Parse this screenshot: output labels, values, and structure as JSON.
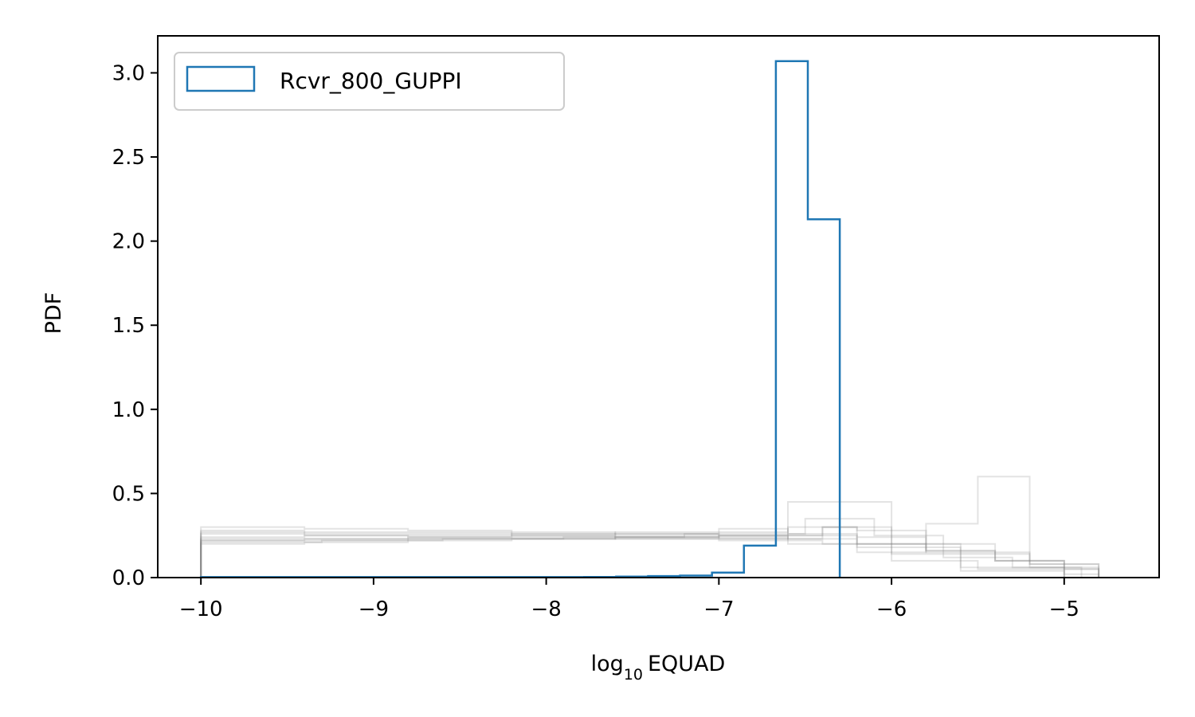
{
  "chart_data": {
    "type": "histogram-step",
    "title": "",
    "xlabel": {
      "main": "log",
      "sub": "10",
      "suffix": "EQUAD"
    },
    "ylabel": "PDF",
    "xlim": [
      -10.25,
      -4.45
    ],
    "ylim": [
      0,
      3.22
    ],
    "xticks": [
      -10,
      -9,
      -8,
      -7,
      -6,
      -5
    ],
    "xtick_labels": [
      "−10",
      "−9",
      "−8",
      "−7",
      "−6",
      "−5"
    ],
    "yticks": [
      0.0,
      0.5,
      1.0,
      1.5,
      2.0,
      2.5,
      3.0
    ],
    "ytick_labels": [
      "0.0",
      "0.5",
      "1.0",
      "1.5",
      "2.0",
      "2.5",
      "3.0"
    ],
    "legend": {
      "position": "top-left",
      "entries": [
        "Rcvr_800_GUPPI"
      ]
    },
    "colors": {
      "highlight": "#1f77b4",
      "background": "#808080"
    },
    "series": [
      {
        "name": "Rcvr_800_GUPPI",
        "highlight": true,
        "edges": [
          -10.0,
          -9.815,
          -9.63,
          -9.445,
          -9.26,
          -9.075,
          -8.89,
          -8.705,
          -8.52,
          -8.335,
          -8.15,
          -7.965,
          -7.78,
          -7.595,
          -7.41,
          -7.225,
          -7.04,
          -6.855,
          -6.67,
          -6.485,
          -6.3
        ],
        "values": [
          0.003,
          0.003,
          0.003,
          0.003,
          0.003,
          0.003,
          0.003,
          0.003,
          0.003,
          0.003,
          0.003,
          0.003,
          0.004,
          0.006,
          0.009,
          0.012,
          0.03,
          0.19,
          3.07,
          2.13
        ]
      },
      {
        "highlight": false,
        "edges": [
          -10.0,
          -9.4,
          -8.8,
          -8.2,
          -7.6,
          -7.0,
          -6.4,
          -5.8,
          -5.2,
          -4.8
        ],
        "values": [
          0.26,
          0.25,
          0.24,
          0.24,
          0.23,
          0.22,
          0.2,
          0.15,
          0.08
        ]
      },
      {
        "highlight": false,
        "edges": [
          -10.0,
          -9.4,
          -8.8,
          -8.2,
          -7.6,
          -7.0,
          -6.6,
          -6.2,
          -5.8,
          -5.4,
          -5.0
        ],
        "values": [
          0.22,
          0.23,
          0.24,
          0.25,
          0.26,
          0.27,
          0.3,
          0.28,
          0.2,
          0.1
        ]
      },
      {
        "highlight": false,
        "edges": [
          -10.0,
          -9.4,
          -8.8,
          -8.2,
          -7.6,
          -7.0,
          -6.6,
          -6.2,
          -5.8,
          -5.4,
          -5.0,
          -4.8
        ],
        "values": [
          0.28,
          0.27,
          0.27,
          0.26,
          0.25,
          0.24,
          0.23,
          0.2,
          0.16,
          0.1,
          0.05
        ]
      },
      {
        "highlight": false,
        "edges": [
          -10.0,
          -9.3,
          -8.6,
          -7.9,
          -7.2,
          -6.5,
          -6.1,
          -5.7,
          -5.3,
          -4.9
        ],
        "values": [
          0.21,
          0.22,
          0.23,
          0.24,
          0.26,
          0.35,
          0.25,
          0.12,
          0.06
        ]
      },
      {
        "highlight": false,
        "edges": [
          -10.0,
          -9.4,
          -8.8,
          -8.2,
          -7.6,
          -7.0,
          -6.4,
          -6.2,
          -5.8,
          -5.4,
          -5.0,
          -4.8
        ],
        "values": [
          0.23,
          0.23,
          0.23,
          0.23,
          0.23,
          0.23,
          0.3,
          0.24,
          0.16,
          0.1,
          0.05
        ]
      },
      {
        "highlight": false,
        "edges": [
          -10.0,
          -9.4,
          -8.8,
          -8.2,
          -7.6,
          -7.0,
          -6.6,
          -6.0,
          -5.5,
          -5.0
        ],
        "values": [
          0.3,
          0.29,
          0.28,
          0.27,
          0.26,
          0.25,
          0.2,
          0.1,
          0.05
        ]
      },
      {
        "highlight": false,
        "edges": [
          -10.0,
          -9.4,
          -8.8,
          -8.2,
          -7.6,
          -7.0,
          -6.2,
          -5.8,
          -5.5,
          -5.2,
          -4.8
        ],
        "values": [
          0.2,
          0.21,
          0.22,
          0.23,
          0.24,
          0.25,
          0.15,
          0.32,
          0.6,
          0.08
        ]
      },
      {
        "highlight": false,
        "edges": [
          -10.0,
          -9.4,
          -8.8,
          -8.2,
          -7.6,
          -7.0,
          -6.6,
          -6.2,
          -5.6,
          -5.0,
          -4.8
        ],
        "values": [
          0.24,
          0.25,
          0.25,
          0.26,
          0.27,
          0.29,
          0.26,
          0.18,
          0.06,
          0.02
        ]
      },
      {
        "highlight": false,
        "edges": [
          -10.0,
          -9.4,
          -8.8,
          -8.2,
          -7.6,
          -7.0,
          -6.6,
          -6.0,
          -5.6,
          -5.0
        ],
        "values": [
          0.27,
          0.26,
          0.26,
          0.25,
          0.24,
          0.23,
          0.45,
          0.14,
          0.04
        ]
      },
      {
        "highlight": false,
        "edges": [
          -10.0,
          -9.4,
          -8.8,
          -8.2,
          -7.6,
          -7.0,
          -6.4,
          -6.0,
          -5.6,
          -5.2,
          -4.8
        ],
        "values": [
          0.22,
          0.22,
          0.23,
          0.23,
          0.24,
          0.25,
          0.3,
          0.2,
          0.14,
          0.06
        ]
      }
    ]
  }
}
